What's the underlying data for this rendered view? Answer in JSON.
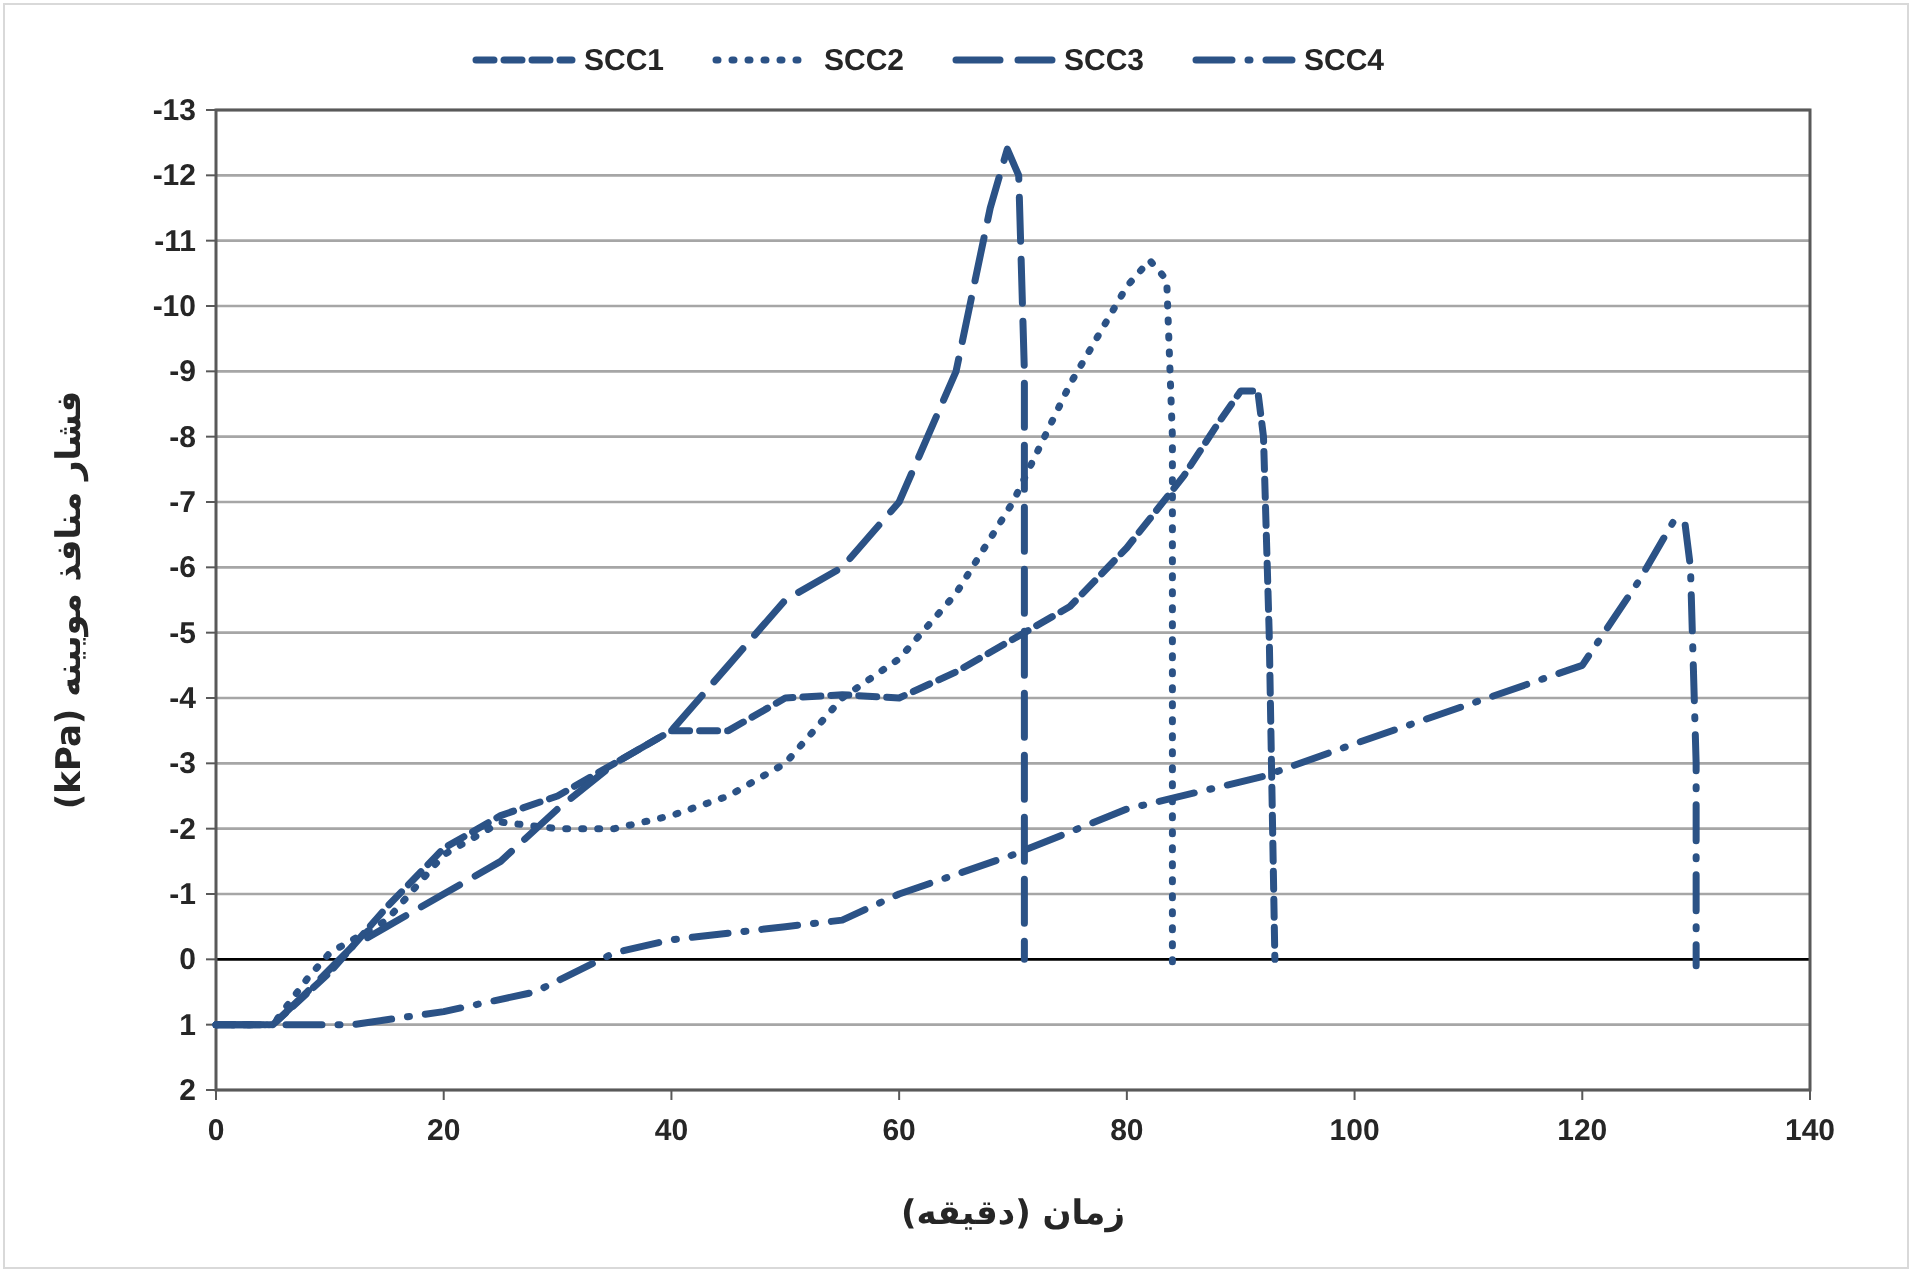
{
  "chart_data": {
    "type": "line",
    "xlabel": "زمان (دقیقه)",
    "ylabel": "فشار منافذ مویینه  (kPa)",
    "xlim": [
      0,
      140
    ],
    "xticks": [
      0,
      20,
      40,
      60,
      80,
      100,
      120,
      140
    ],
    "ylim": [
      2,
      -13
    ],
    "yticks": [
      -13,
      -12,
      -11,
      -10,
      -9,
      -8,
      -7,
      -6,
      -5,
      -4,
      -3,
      -2,
      -1,
      0,
      1,
      2
    ],
    "grid": "y",
    "legend": "top",
    "series": [
      {
        "name": "SCC1",
        "color": "#2b5286",
        "line_style": "dashed",
        "x": [
          0,
          5,
          10,
          15,
          20,
          25,
          30,
          35,
          40,
          45,
          50,
          55,
          60,
          65,
          70,
          75,
          80,
          85,
          88,
          90,
          91.5,
          92,
          92.5,
          93
        ],
        "values": [
          1,
          1,
          0.2,
          -0.8,
          -1.7,
          -2.2,
          -2.5,
          -3.0,
          -3.5,
          -3.5,
          -4.0,
          -4.05,
          -4.0,
          -4.4,
          -4.9,
          -5.4,
          -6.3,
          -7.4,
          -8.2,
          -8.7,
          -8.7,
          -8.0,
          -5,
          0
        ]
      },
      {
        "name": "SCC2",
        "color": "#2b5286",
        "line_style": "dotted",
        "x": [
          0,
          5,
          8,
          10,
          12,
          15,
          20,
          25,
          30,
          35,
          40,
          45,
          50,
          55,
          60,
          65,
          70,
          75,
          80,
          82,
          83.5,
          84,
          84
        ],
        "values": [
          1,
          1,
          0.3,
          -0.1,
          -0.3,
          -0.6,
          -1.6,
          -2.1,
          -2.0,
          -2.0,
          -2.2,
          -2.5,
          -3.0,
          -4.0,
          -4.6,
          -5.6,
          -7.0,
          -8.8,
          -10.3,
          -10.7,
          -10.4,
          -8,
          0.2
        ]
      },
      {
        "name": "SCC3",
        "color": "#2b5286",
        "line_style": "longdash",
        "x": [
          0,
          5,
          8,
          12,
          15,
          20,
          25,
          30,
          35,
          40,
          45,
          50,
          55,
          60,
          65,
          68,
          69.5,
          70.5,
          71,
          71
        ],
        "values": [
          1,
          1,
          0.5,
          -0.2,
          -0.5,
          -1.0,
          -1.5,
          -2.3,
          -3.0,
          -3.5,
          -4.5,
          -5.5,
          -6.0,
          -7.0,
          -9.0,
          -11.5,
          -12.4,
          -12.0,
          -9,
          0
        ]
      },
      {
        "name": "SCC4",
        "color": "#2b5286",
        "line_style": "dashdot",
        "x": [
          0,
          5,
          12,
          20,
          28,
          35,
          40,
          50,
          55,
          60,
          70,
          80,
          92,
          100,
          110,
          120,
          125,
          128,
          129,
          129.5,
          130,
          130
        ],
        "values": [
          1,
          1.0,
          1.0,
          0.8,
          0.5,
          -0.1,
          -0.3,
          -0.5,
          -0.6,
          -1.0,
          -1.6,
          -2.3,
          -2.8,
          -3.3,
          -3.9,
          -4.5,
          -5.8,
          -6.7,
          -6.7,
          -6.0,
          -3,
          0.1
        ]
      }
    ]
  }
}
